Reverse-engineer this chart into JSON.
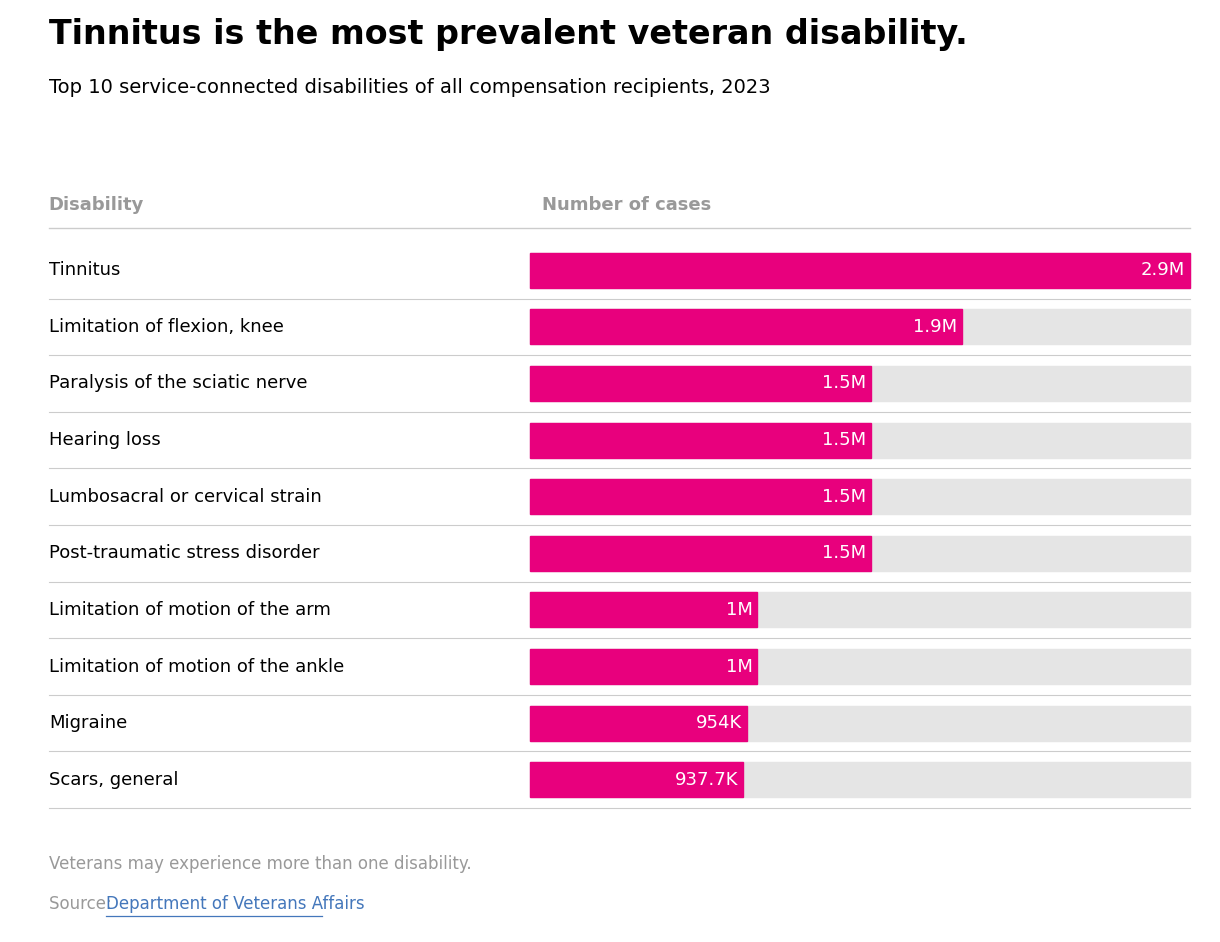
{
  "title": "Tinnitus is the most prevalent veteran disability.",
  "subtitle": "Top 10 service-connected disabilities of all compensation recipients, 2023",
  "col_header_left": "Disability",
  "col_header_right": "Number of cases",
  "categories": [
    "Tinnitus",
    "Limitation of flexion, knee",
    "Paralysis of the sciatic nerve",
    "Hearing loss",
    "Lumbosacral or cervical strain",
    "Post-traumatic stress disorder",
    "Limitation of motion of the arm",
    "Limitation of motion of the ankle",
    "Migraine",
    "Scars, general"
  ],
  "values": [
    2900000,
    1900000,
    1500000,
    1500000,
    1500000,
    1500000,
    1000000,
    1000000,
    954000,
    937700
  ],
  "labels": [
    "2.9M",
    "1.9M",
    "1.5M",
    "1.5M",
    "1.5M",
    "1.5M",
    "1M",
    "1M",
    "954K",
    "937.7K"
  ],
  "bar_color": "#E8007D",
  "bg_bar_color": "#E5E5E5",
  "max_value": 2900000,
  "footnote": "Veterans may experience more than one disability.",
  "source_text": "Source: ",
  "source_link_text": "Department of Veterans Affairs",
  "title_fontsize": 24,
  "subtitle_fontsize": 14,
  "label_fontsize": 13,
  "header_fontsize": 13,
  "footnote_fontsize": 12,
  "background_color": "#FFFFFF",
  "text_color": "#000000",
  "header_color": "#999999",
  "divider_color": "#CCCCCC",
  "link_color": "#4477BB"
}
